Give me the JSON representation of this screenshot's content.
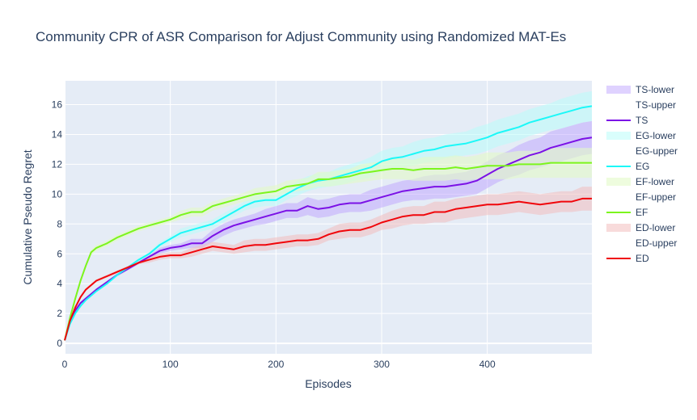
{
  "chart_data": {
    "type": "line",
    "title": "Community CPR of ASR Comparison for Adjust Community using Randomized MAT-Es",
    "xlabel": "Episodes",
    "ylabel": "Cumulative Pseudo Regret",
    "xlim": [
      0,
      499
    ],
    "ylim": [
      -0.7,
      17.6
    ],
    "xticks": [
      0,
      100,
      200,
      300,
      400
    ],
    "yticks": [
      0,
      2,
      4,
      6,
      8,
      10,
      12,
      14,
      16
    ],
    "grid": true,
    "legend_position": "right",
    "legend": [
      "TS-lower",
      "TS-upper",
      "TS",
      "EG-lower",
      "EG-upper",
      "EG",
      "EF-lower",
      "EF-upper",
      "EF",
      "ED-lower",
      "ED-upper",
      "ED"
    ],
    "x": [
      0,
      5,
      10,
      15,
      20,
      25,
      30,
      40,
      50,
      60,
      70,
      80,
      90,
      100,
      110,
      120,
      130,
      140,
      150,
      160,
      170,
      180,
      190,
      200,
      210,
      220,
      230,
      240,
      250,
      260,
      270,
      280,
      290,
      300,
      310,
      320,
      330,
      340,
      350,
      360,
      370,
      380,
      390,
      400,
      410,
      420,
      430,
      440,
      450,
      460,
      470,
      480,
      490,
      499
    ],
    "series": [
      {
        "name": "TS",
        "color": "#7b11e6",
        "fill": "rgba(184,156,255,0.45)",
        "values": [
          0.2,
          1.4,
          2.2,
          2.7,
          3.0,
          3.3,
          3.6,
          4.1,
          4.6,
          5.0,
          5.4,
          5.8,
          6.2,
          6.4,
          6.5,
          6.7,
          6.7,
          7.2,
          7.6,
          7.9,
          8.1,
          8.3,
          8.5,
          8.7,
          8.9,
          8.9,
          9.2,
          9.0,
          9.1,
          9.3,
          9.4,
          9.4,
          9.6,
          9.8,
          10.0,
          10.2,
          10.3,
          10.4,
          10.5,
          10.5,
          10.6,
          10.7,
          10.9,
          11.3,
          11.7,
          12.0,
          12.3,
          12.6,
          12.8,
          13.1,
          13.3,
          13.5,
          13.7,
          13.8
        ],
        "lower": [
          0.2,
          1.3,
          2.1,
          2.6,
          2.9,
          3.2,
          3.5,
          4.0,
          4.5,
          4.9,
          5.3,
          5.7,
          6.0,
          6.2,
          6.3,
          6.4,
          6.4,
          6.8,
          7.2,
          7.5,
          7.7,
          7.9,
          8.0,
          8.2,
          8.4,
          8.4,
          8.6,
          8.4,
          8.5,
          8.7,
          8.8,
          8.8,
          8.9,
          9.1,
          9.3,
          9.5,
          9.6,
          9.6,
          9.7,
          9.7,
          9.8,
          9.9,
          10.0,
          10.4,
          10.8,
          11.1,
          11.3,
          11.6,
          11.8,
          12.0,
          12.2,
          12.4,
          12.6,
          12.7
        ],
        "upper": [
          0.2,
          1.5,
          2.3,
          2.8,
          3.1,
          3.4,
          3.7,
          4.2,
          4.7,
          5.1,
          5.5,
          5.9,
          6.4,
          6.6,
          6.7,
          7.0,
          7.0,
          7.6,
          8.0,
          8.3,
          8.5,
          8.7,
          9.0,
          9.2,
          9.4,
          9.4,
          9.8,
          9.6,
          9.7,
          9.9,
          10.0,
          10.0,
          10.3,
          10.5,
          10.7,
          10.9,
          11.0,
          11.2,
          11.3,
          11.3,
          11.4,
          11.5,
          11.8,
          12.2,
          12.6,
          12.9,
          13.3,
          13.6,
          13.8,
          14.2,
          14.4,
          14.6,
          14.8,
          14.9
        ]
      },
      {
        "name": "EG",
        "color": "#1cf8f8",
        "fill": "rgba(186,253,250,0.55)",
        "values": [
          0.2,
          1.3,
          2.0,
          2.5,
          2.9,
          3.2,
          3.5,
          4.0,
          4.6,
          5.1,
          5.6,
          6.0,
          6.6,
          7.0,
          7.4,
          7.6,
          7.8,
          8.0,
          8.4,
          8.8,
          9.2,
          9.5,
          9.6,
          9.6,
          10.0,
          10.4,
          10.7,
          10.9,
          11.0,
          11.2,
          11.4,
          11.6,
          11.8,
          12.2,
          12.4,
          12.5,
          12.7,
          12.9,
          13.0,
          13.2,
          13.3,
          13.4,
          13.6,
          13.8,
          14.1,
          14.3,
          14.5,
          14.8,
          15.0,
          15.2,
          15.4,
          15.6,
          15.8,
          15.9
        ],
        "lower": [
          0.2,
          1.2,
          1.9,
          2.4,
          2.8,
          3.1,
          3.4,
          3.9,
          4.5,
          5.0,
          5.5,
          5.9,
          6.4,
          6.8,
          7.1,
          7.3,
          7.5,
          7.7,
          8.1,
          8.5,
          8.9,
          9.1,
          9.2,
          9.2,
          9.6,
          9.9,
          10.2,
          10.4,
          10.5,
          10.6,
          10.8,
          11.0,
          11.1,
          11.5,
          11.7,
          11.8,
          11.9,
          12.1,
          12.2,
          12.4,
          12.5,
          12.6,
          12.7,
          12.9,
          13.2,
          13.4,
          13.6,
          13.9,
          14.1,
          14.3,
          14.4,
          14.6,
          14.8,
          14.9
        ],
        "upper": [
          0.2,
          1.4,
          2.1,
          2.6,
          3.0,
          3.3,
          3.6,
          4.1,
          4.7,
          5.2,
          5.7,
          6.1,
          6.8,
          7.2,
          7.7,
          7.9,
          8.1,
          8.3,
          8.7,
          9.1,
          9.5,
          9.9,
          10.0,
          10.0,
          10.4,
          10.9,
          11.2,
          11.4,
          11.5,
          11.8,
          12.0,
          12.2,
          12.5,
          12.9,
          13.1,
          13.2,
          13.5,
          13.7,
          13.8,
          14.0,
          14.1,
          14.2,
          14.5,
          14.7,
          15.0,
          15.2,
          15.4,
          15.7,
          15.9,
          16.1,
          16.4,
          16.6,
          16.8,
          16.9
        ]
      },
      {
        "name": "EF",
        "color": "#7cf51d",
        "fill": "rgba(226,250,200,0.6)",
        "values": [
          0.2,
          1.7,
          3.0,
          4.2,
          5.2,
          6.1,
          6.4,
          6.7,
          7.1,
          7.4,
          7.7,
          7.9,
          8.1,
          8.3,
          8.6,
          8.8,
          8.8,
          9.2,
          9.4,
          9.6,
          9.8,
          10.0,
          10.1,
          10.2,
          10.5,
          10.6,
          10.7,
          11.0,
          11.0,
          11.1,
          11.2,
          11.4,
          11.5,
          11.6,
          11.7,
          11.7,
          11.6,
          11.7,
          11.7,
          11.7,
          11.8,
          11.7,
          11.8,
          11.9,
          11.9,
          11.9,
          12.0,
          12.0,
          12.0,
          12.1,
          12.1,
          12.1,
          12.1,
          12.1
        ],
        "lower": [
          0.2,
          1.6,
          2.9,
          4.1,
          5.1,
          5.9,
          6.2,
          6.5,
          6.9,
          7.2,
          7.5,
          7.7,
          7.9,
          8.1,
          8.3,
          8.5,
          8.5,
          8.9,
          9.1,
          9.3,
          9.5,
          9.6,
          9.7,
          9.8,
          10.1,
          10.2,
          10.3,
          10.5,
          10.5,
          10.6,
          10.7,
          10.8,
          10.9,
          11.0,
          11.0,
          11.0,
          10.9,
          10.9,
          10.9,
          10.9,
          11.0,
          10.9,
          11.0,
          11.0,
          11.0,
          11.0,
          11.1,
          11.1,
          11.1,
          11.1,
          11.1,
          11.1,
          11.1,
          11.1
        ],
        "upper": [
          0.2,
          1.8,
          3.1,
          4.3,
          5.3,
          6.3,
          6.6,
          6.9,
          7.3,
          7.6,
          7.9,
          8.1,
          8.3,
          8.5,
          8.9,
          9.1,
          9.1,
          9.5,
          9.7,
          9.9,
          10.1,
          10.4,
          10.5,
          10.6,
          10.9,
          11.0,
          11.1,
          11.5,
          11.5,
          11.6,
          11.7,
          12.0,
          12.1,
          12.2,
          12.4,
          12.4,
          12.3,
          12.5,
          12.5,
          12.5,
          12.6,
          12.5,
          12.6,
          12.8,
          12.8,
          12.8,
          12.9,
          12.9,
          12.9,
          13.1,
          13.1,
          13.1,
          13.1,
          13.1
        ]
      },
      {
        "name": "ED",
        "color": "#f0060b",
        "fill": "rgba(243,190,190,0.55)",
        "values": [
          0.2,
          1.5,
          2.4,
          3.1,
          3.6,
          3.9,
          4.2,
          4.5,
          4.8,
          5.1,
          5.4,
          5.6,
          5.8,
          5.9,
          5.9,
          6.1,
          6.3,
          6.5,
          6.4,
          6.3,
          6.5,
          6.6,
          6.6,
          6.7,
          6.8,
          6.9,
          6.9,
          7.0,
          7.3,
          7.5,
          7.6,
          7.6,
          7.8,
          8.1,
          8.3,
          8.5,
          8.6,
          8.6,
          8.8,
          8.8,
          9.0,
          9.1,
          9.2,
          9.3,
          9.3,
          9.4,
          9.5,
          9.4,
          9.3,
          9.4,
          9.5,
          9.5,
          9.7,
          9.7
        ],
        "lower": [
          0.2,
          1.4,
          2.3,
          3.0,
          3.5,
          3.8,
          4.1,
          4.4,
          4.7,
          5.0,
          5.3,
          5.4,
          5.6,
          5.7,
          5.7,
          5.8,
          6.0,
          6.2,
          6.1,
          6.0,
          6.1,
          6.2,
          6.2,
          6.3,
          6.4,
          6.5,
          6.5,
          6.6,
          6.9,
          7.0,
          7.1,
          7.1,
          7.3,
          7.6,
          7.7,
          7.9,
          8.0,
          8.0,
          8.1,
          8.1,
          8.3,
          8.4,
          8.5,
          8.6,
          8.6,
          8.7,
          8.8,
          8.7,
          8.6,
          8.7,
          8.8,
          8.8,
          8.9,
          8.9
        ],
        "upper": [
          0.2,
          1.6,
          2.5,
          3.2,
          3.7,
          4.0,
          4.3,
          4.6,
          4.9,
          5.2,
          5.5,
          5.8,
          6.0,
          6.1,
          6.1,
          6.4,
          6.6,
          6.8,
          6.7,
          6.6,
          6.9,
          7.0,
          7.0,
          7.1,
          7.2,
          7.3,
          7.3,
          7.4,
          7.7,
          8.0,
          8.1,
          8.1,
          8.3,
          8.6,
          8.9,
          9.1,
          9.2,
          9.2,
          9.5,
          9.5,
          9.7,
          9.8,
          9.9,
          10.0,
          10.0,
          10.1,
          10.2,
          10.1,
          10.0,
          10.1,
          10.2,
          10.2,
          10.5,
          10.5
        ]
      }
    ]
  }
}
